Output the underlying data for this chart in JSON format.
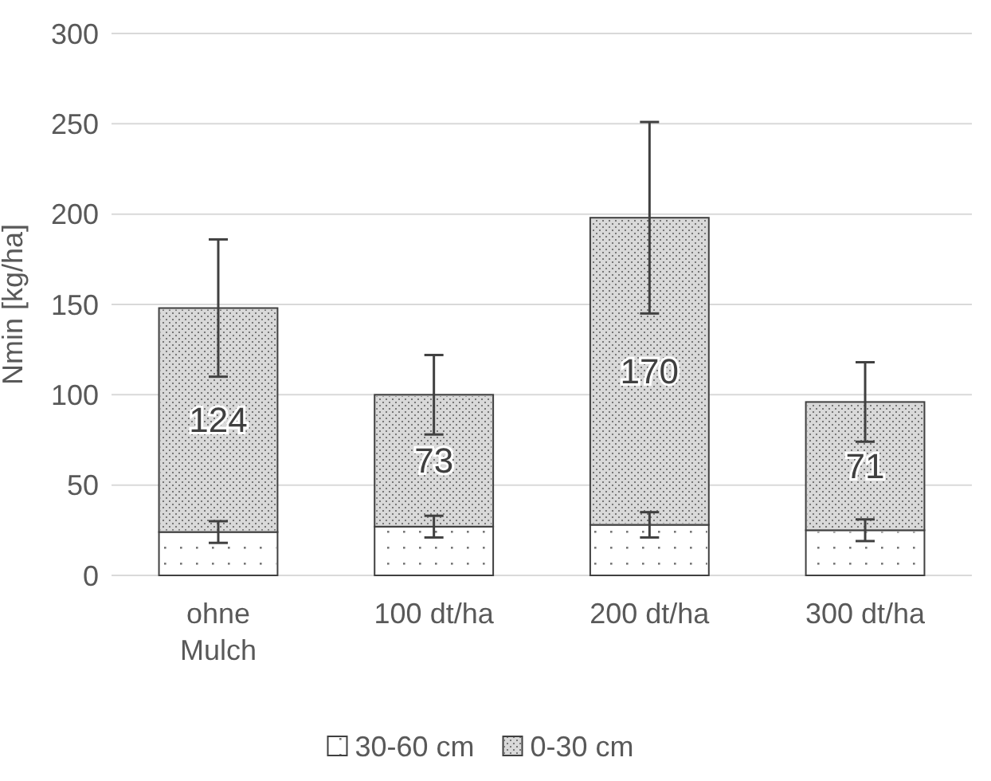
{
  "chart_data": {
    "type": "bar",
    "stacked": true,
    "ylabel": "Nmin [kg/ha]",
    "categories": [
      "ohne Mulch",
      "100 dt/ha",
      "200 dt/ha",
      "300 dt/ha"
    ],
    "series": [
      {
        "name": "30-60 cm",
        "color": "#ffffff",
        "values": [
          24,
          27,
          28,
          25
        ],
        "errors": [
          6,
          6,
          7,
          6
        ]
      },
      {
        "name": "0-30 cm",
        "color": "#d9d9d9",
        "values": [
          124,
          73,
          170,
          71
        ],
        "errors": [
          38,
          22,
          53,
          22
        ],
        "value_labels": [
          "124",
          "73",
          "170",
          "71"
        ]
      }
    ],
    "ylim": [
      0,
      300
    ],
    "yticks": [
      0,
      50,
      100,
      150,
      200,
      250,
      300
    ],
    "grid": "y",
    "legend": "bottom"
  }
}
